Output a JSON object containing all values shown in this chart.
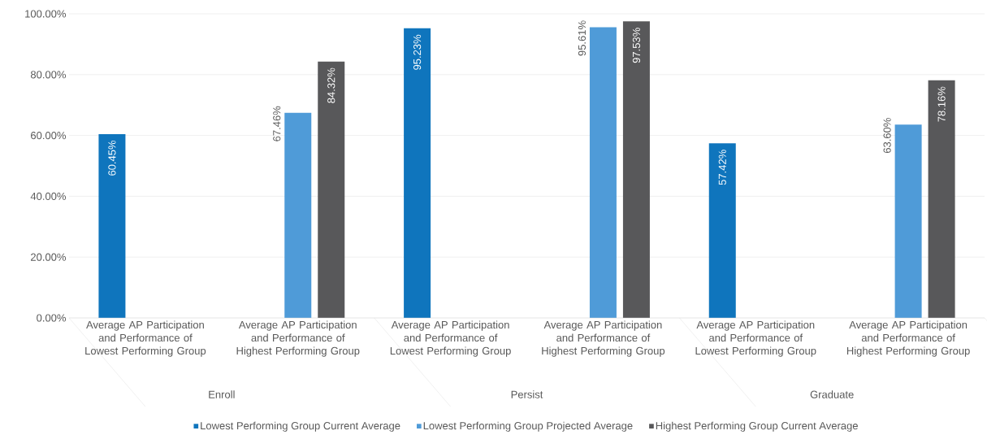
{
  "chart_data": {
    "type": "bar",
    "categories": [
      "Average AP Participation and Performance of Lowest Performing Group",
      "Average AP Participation and Performance of Highest Performing  Group",
      "Average AP Participation and Performance of Lowest Performing Group",
      "Average AP Participation and Performance of Highest Performing  Group",
      "Average AP Participation and Performance of Lowest Performing Group",
      "Average AP Participation and Performance of Highest Performing  Group"
    ],
    "series": [
      {
        "name": "Lowest Performing Group Current Average",
        "color": "#0f75bd",
        "values": [
          60.45,
          null,
          95.23,
          null,
          57.42,
          null
        ],
        "value_labels": [
          "60.45%",
          null,
          "95.23%",
          null,
          "57.42%",
          null
        ]
      },
      {
        "name": "Lowest Performing Group Projected Average",
        "color": "#4f9bd8",
        "values": [
          null,
          67.46,
          null,
          95.61,
          null,
          63.6
        ],
        "value_labels": [
          null,
          "67.46%",
          null,
          "95.61%",
          null,
          "63.60%"
        ]
      },
      {
        "name": "Highest Performing Group Current Average",
        "color": "#58585a",
        "values": [
          null,
          84.32,
          null,
          97.53,
          null,
          78.16
        ],
        "value_labels": [
          null,
          "84.32%",
          null,
          "97.53%",
          null,
          "78.16%"
        ]
      }
    ],
    "ylim": [
      0,
      100
    ],
    "yticks": [
      {
        "value": 0,
        "label": "0.00%"
      },
      {
        "value": 20,
        "label": "20.00%"
      },
      {
        "value": 40,
        "label": "40.00%"
      },
      {
        "value": 60,
        "label": "60.00%"
      },
      {
        "value": 80,
        "label": "80.00%"
      },
      {
        "value": 100,
        "label": "100.00%"
      }
    ],
    "grid": "y",
    "legend": "bottom",
    "annotations": [
      "Enroll",
      "Persist",
      "Graduate"
    ]
  }
}
